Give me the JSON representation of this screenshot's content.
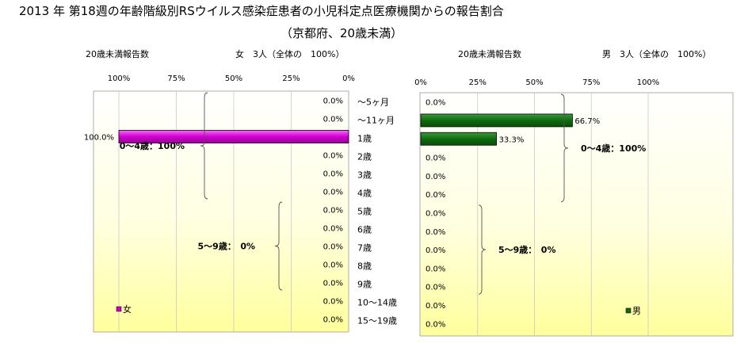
{
  "title": "2013 年 第18週の年齢階級別RSウイルス感染症患者の小児科定点医療機関からの報告割合",
  "subtitle": "（京都府、20歳未満）",
  "chart_data": {
    "type": "bar",
    "categories": [
      "～5ヶ月",
      "～11ヶ月",
      "1歳",
      "2歳",
      "3歳",
      "4歳",
      "5歳",
      "6歳",
      "7歳",
      "8歳",
      "9歳",
      "10～14歳",
      "15～19歳"
    ],
    "xlim": [
      0,
      100
    ],
    "x_ticks": [
      "0%",
      "25%",
      "50%",
      "75%",
      "100%"
    ],
    "grid": true,
    "panels": [
      {
        "side": "left",
        "header_left": "20歳未満報告数",
        "header_right": "女　3人（全体の　100%）",
        "series": [
          {
            "name": "女",
            "color": "#cc00cc",
            "values": [
              0,
              0,
              100,
              0,
              0,
              0,
              0,
              0,
              0,
              0,
              0,
              0,
              0
            ]
          }
        ],
        "data_labels": [
          "0.0%",
          "0.0%",
          "100.0%",
          "0.0%",
          "0.0%",
          "0.0%",
          "0.0%",
          "0.0%",
          "0.0%",
          "0.0%",
          "0.0%",
          "0.0%",
          "0.0%"
        ],
        "annotations": [
          {
            "text": "0～4歳：100%",
            "from": 0,
            "to": 5
          },
          {
            "text": "5～9歳：　0%",
            "from": 6,
            "to": 10
          }
        ],
        "legend": "bottom-left"
      },
      {
        "side": "right",
        "header_left": "20歳未満報告数",
        "header_right": "男　3人（全体の　100%）",
        "series": [
          {
            "name": "男",
            "color": "#0f6b0f",
            "values": [
              0,
              66.7,
              33.3,
              0,
              0,
              0,
              0,
              0,
              0,
              0,
              0,
              0,
              0
            ]
          }
        ],
        "data_labels": [
          "0.0%",
          "66.7%",
          "33.3%",
          "0.0%",
          "0.0%",
          "0.0%",
          "0.0%",
          "0.0%",
          "0.0%",
          "0.0%",
          "0.0%",
          "0.0%",
          "0.0%"
        ],
        "annotations": [
          {
            "text": "0～4歳：100%",
            "from": 0,
            "to": 5
          },
          {
            "text": "5～9歳：　0%",
            "from": 6,
            "to": 10
          }
        ],
        "legend": "bottom-right"
      }
    ]
  }
}
